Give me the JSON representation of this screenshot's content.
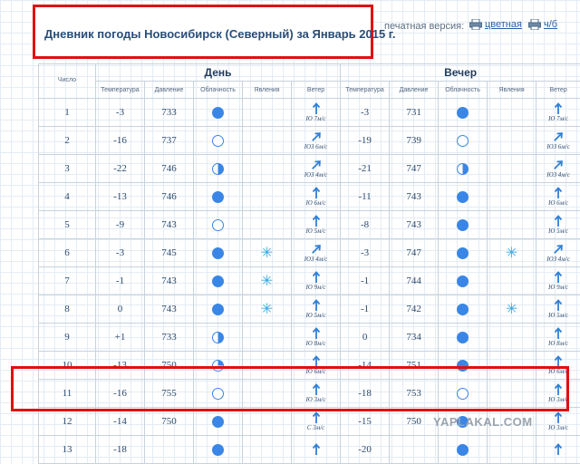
{
  "header": {
    "title": "Дневник погоды Новосибирск (Северный) за Январь 2015 г.",
    "print_label": "печатная версия:",
    "print_color": "цветная",
    "print_bw": "ч/б"
  },
  "table": {
    "col_number": "Число",
    "day_label": "День",
    "evening_label": "Вечер",
    "sub_headers": [
      "Температура",
      "Давление",
      "Облачность",
      "Явления",
      "Ветер"
    ],
    "rows": [
      {
        "n": "1",
        "day": {
          "t": "-3",
          "p": "733",
          "c": "full",
          "ph": "",
          "wdir": "N",
          "w": "Ю 7м/с"
        },
        "eve": {
          "t": "-3",
          "p": "731",
          "c": "full",
          "ph": "",
          "wdir": "N",
          "w": "Ю 7м/с"
        }
      },
      {
        "n": "2",
        "day": {
          "t": "-16",
          "p": "737",
          "c": "empty",
          "ph": "",
          "wdir": "NE",
          "w": "ЮЗ 6м/с"
        },
        "eve": {
          "t": "-19",
          "p": "739",
          "c": "empty",
          "ph": "",
          "wdir": "NE",
          "w": "ЮЗ 6м/с"
        }
      },
      {
        "n": "3",
        "day": {
          "t": "-22",
          "p": "746",
          "c": "half",
          "ph": "",
          "wdir": "NE",
          "w": "ЮЗ 4м/с"
        },
        "eve": {
          "t": "-21",
          "p": "747",
          "c": "half",
          "ph": "",
          "wdir": "NE",
          "w": "ЮЗ 4м/с"
        }
      },
      {
        "n": "4",
        "day": {
          "t": "-13",
          "p": "746",
          "c": "full",
          "ph": "",
          "wdir": "N",
          "w": "Ю 6м/с"
        },
        "eve": {
          "t": "-11",
          "p": "743",
          "c": "full",
          "ph": "",
          "wdir": "N",
          "w": "Ю 6м/с"
        }
      },
      {
        "n": "5",
        "day": {
          "t": "-9",
          "p": "743",
          "c": "empty",
          "ph": "",
          "wdir": "N",
          "w": "Ю 5м/с"
        },
        "eve": {
          "t": "-8",
          "p": "743",
          "c": "full",
          "ph": "",
          "wdir": "N",
          "w": "Ю 5м/с"
        }
      },
      {
        "n": "6",
        "day": {
          "t": "-3",
          "p": "745",
          "c": "full",
          "ph": "snow",
          "wdir": "NE",
          "w": "ЮЗ 4м/с"
        },
        "eve": {
          "t": "-3",
          "p": "747",
          "c": "full",
          "ph": "snow",
          "wdir": "NE",
          "w": "ЮЗ 4м/с"
        }
      },
      {
        "n": "7",
        "day": {
          "t": "-1",
          "p": "743",
          "c": "full",
          "ph": "snow",
          "wdir": "N",
          "w": "Ю 9м/с"
        },
        "eve": {
          "t": "-1",
          "p": "744",
          "c": "full",
          "ph": "",
          "wdir": "N",
          "w": "Ю 9м/с"
        }
      },
      {
        "n": "8",
        "day": {
          "t": "0",
          "p": "743",
          "c": "full",
          "ph": "snow",
          "wdir": "N",
          "w": "Ю 5м/с"
        },
        "eve": {
          "t": "-1",
          "p": "742",
          "c": "full",
          "ph": "snow",
          "wdir": "N",
          "w": "Ю 5м/с"
        }
      },
      {
        "n": "9",
        "day": {
          "t": "+1",
          "p": "733",
          "c": "half",
          "ph": "",
          "wdir": "N",
          "w": "Ю 8м/с",
          "red": true
        },
        "eve": {
          "t": "0",
          "p": "734",
          "c": "full",
          "ph": "",
          "wdir": "N",
          "w": "Ю 8м/с"
        }
      },
      {
        "n": "10",
        "day": {
          "t": "-13",
          "p": "750",
          "c": "quarter",
          "ph": "",
          "wdir": "N",
          "w": "Ю 6м/с"
        },
        "eve": {
          "t": "-14",
          "p": "751",
          "c": "full",
          "ph": "",
          "wdir": "N",
          "w": "Ю 6м/с"
        }
      },
      {
        "n": "11",
        "day": {
          "t": "-16",
          "p": "755",
          "c": "empty",
          "ph": "",
          "wdir": "N",
          "w": "Ю 3м/с"
        },
        "eve": {
          "t": "-18",
          "p": "753",
          "c": "empty",
          "ph": "",
          "wdir": "N",
          "w": "Ю 3м/с"
        }
      },
      {
        "n": "12",
        "day": {
          "t": "-14",
          "p": "750",
          "c": "full",
          "ph": "",
          "wdir": "N",
          "w": "С 3м/с"
        },
        "eve": {
          "t": "-15",
          "p": "750",
          "c": "full",
          "ph": "",
          "wdir": "N",
          "w": "Ю 3м/с"
        }
      },
      {
        "n": "13",
        "day": {
          "t": "-18",
          "p": "",
          "c": "full",
          "ph": "",
          "wdir": "N",
          "w": ""
        },
        "eve": {
          "t": "-20",
          "p": "",
          "c": "full",
          "ph": "",
          "wdir": "N",
          "w": ""
        }
      }
    ]
  },
  "watermark": "YAPLAKAL.COM",
  "colors": {
    "highlight": "#e01010",
    "accent": "#3a86e6",
    "snow": "#38a8e6",
    "warm": "#e02020"
  }
}
